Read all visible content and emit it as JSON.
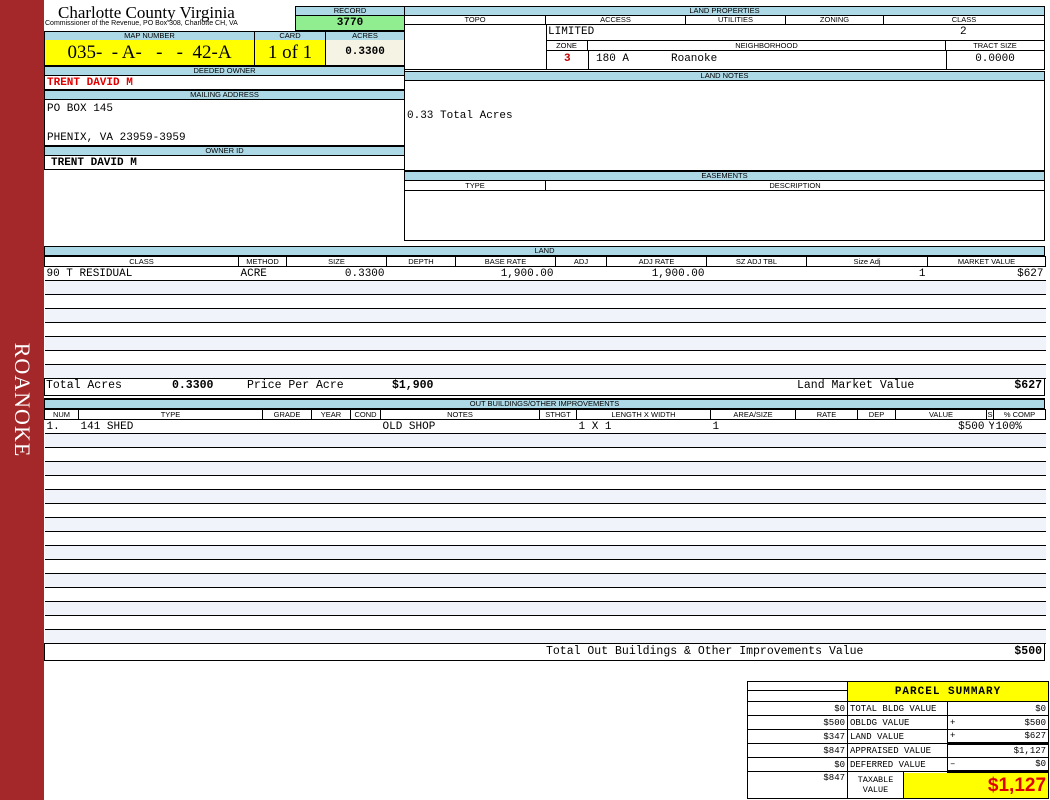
{
  "sidebar": {
    "label": "ROANOKE"
  },
  "header": {
    "title": "Charlotte County Virginia",
    "subtitle": "Commissioner of the Revenue, PO Box 308, Charlotte CH, VA"
  },
  "record": {
    "label": "RECORD",
    "value": "3770"
  },
  "map": {
    "label": "MAP NUMBER",
    "value": "035-  - A-   -   -  42-A",
    "card_label": "CARD",
    "card_value": "1 of 1",
    "acres_label": "ACRES",
    "acres_value": "0.3300"
  },
  "owner": {
    "deeded_label": "DEEDED OWNER",
    "deeded_value": "TRENT DAVID M",
    "mailing_label": "MAILING ADDRESS",
    "address_line1": "PO BOX 145",
    "address_line2": "PHENIX, VA 23959-3959",
    "owner_id_label": "OWNER ID",
    "owner_id_value": "TRENT DAVID M"
  },
  "land_properties": {
    "label": "LAND PROPERTIES",
    "topo_label": "TOPO",
    "access_label": "ACCESS",
    "utilities_label": "UTILITIES",
    "zoning_label": "ZONING",
    "class_label": "CLASS",
    "access_value": "LIMITED",
    "class_value": "2",
    "zone_label": "ZONE",
    "neighborhood_label": "NEIGHBORHOOD",
    "tract_label": "TRACT SIZE",
    "zone_value": "3",
    "neighborhood_code": "180 A",
    "neighborhood_name": "Roanoke",
    "tract_value": "0.0000"
  },
  "land_notes": {
    "label": "LAND NOTES",
    "text": "0.33 Total Acres"
  },
  "easements": {
    "label": "EASEMENTS",
    "type_label": "TYPE",
    "description_label": "DESCRIPTION"
  },
  "land": {
    "label": "LAND",
    "columns": [
      "CLASS",
      "METHOD",
      "SIZE",
      "DEPTH",
      "BASE RATE",
      "ADJ",
      "ADJ RATE",
      "SZ ADJ TBL",
      "Size Adj",
      "MARKET VALUE"
    ],
    "rows": [
      [
        "90  T RESIDUAL",
        "ACRE",
        "0.3300",
        "",
        "1,900.00",
        "",
        "1,900.00",
        "",
        "1",
        "$627"
      ]
    ],
    "total_acres_label": "Total Acres",
    "total_acres": "0.3300",
    "price_label": "Price Per Acre",
    "price": "$1,900",
    "market_label": "Land Market Value",
    "market": "$627"
  },
  "outbuildings": {
    "label": "OUT BUILDINGS/OTHER IMPROVEMENTS",
    "columns": [
      "NUM",
      "TYPE",
      "GRADE",
      "YEAR",
      "COND",
      "NOTES",
      "STHGT",
      "LENGTH X WIDTH",
      "AREA/SIZE",
      "RATE",
      "DEP",
      "VALUE",
      "S",
      "% COMP"
    ],
    "rows": [
      [
        "1.",
        "141 SHED",
        "",
        "",
        "",
        "OLD SHOP",
        "",
        "1 X 1",
        "1",
        "",
        "",
        "$500",
        "Y",
        "100%"
      ]
    ],
    "total_label": "Total Out Buildings & Other Improvements Value",
    "total": "$500"
  },
  "summary": {
    "title": "PARCEL SUMMARY",
    "rows": [
      {
        "left": "$0",
        "label": "TOTAL BLDG VALUE",
        "op": "",
        "value": "$0"
      },
      {
        "left": "$500",
        "label": "OBLDG VALUE",
        "op": "+",
        "value": "$500"
      },
      {
        "left": "$347",
        "label": "LAND VALUE",
        "op": "+",
        "value": "$627"
      },
      {
        "left": "$847",
        "label": "APPRAISED VALUE",
        "op": "",
        "value": "$1,127"
      },
      {
        "left": "$0",
        "label": "DEFERRED VALUE",
        "op": "–",
        "value": "$0"
      }
    ],
    "taxable_left": "$847",
    "taxable_label": "TAXABLE VALUE",
    "taxable_value": "$1,127"
  },
  "colors": {
    "sidebar": "#a4282a",
    "header_bg": "#add8e6",
    "highlight": "#ffff00",
    "record_bg": "#90ee90",
    "owner_red": "#e00000"
  }
}
